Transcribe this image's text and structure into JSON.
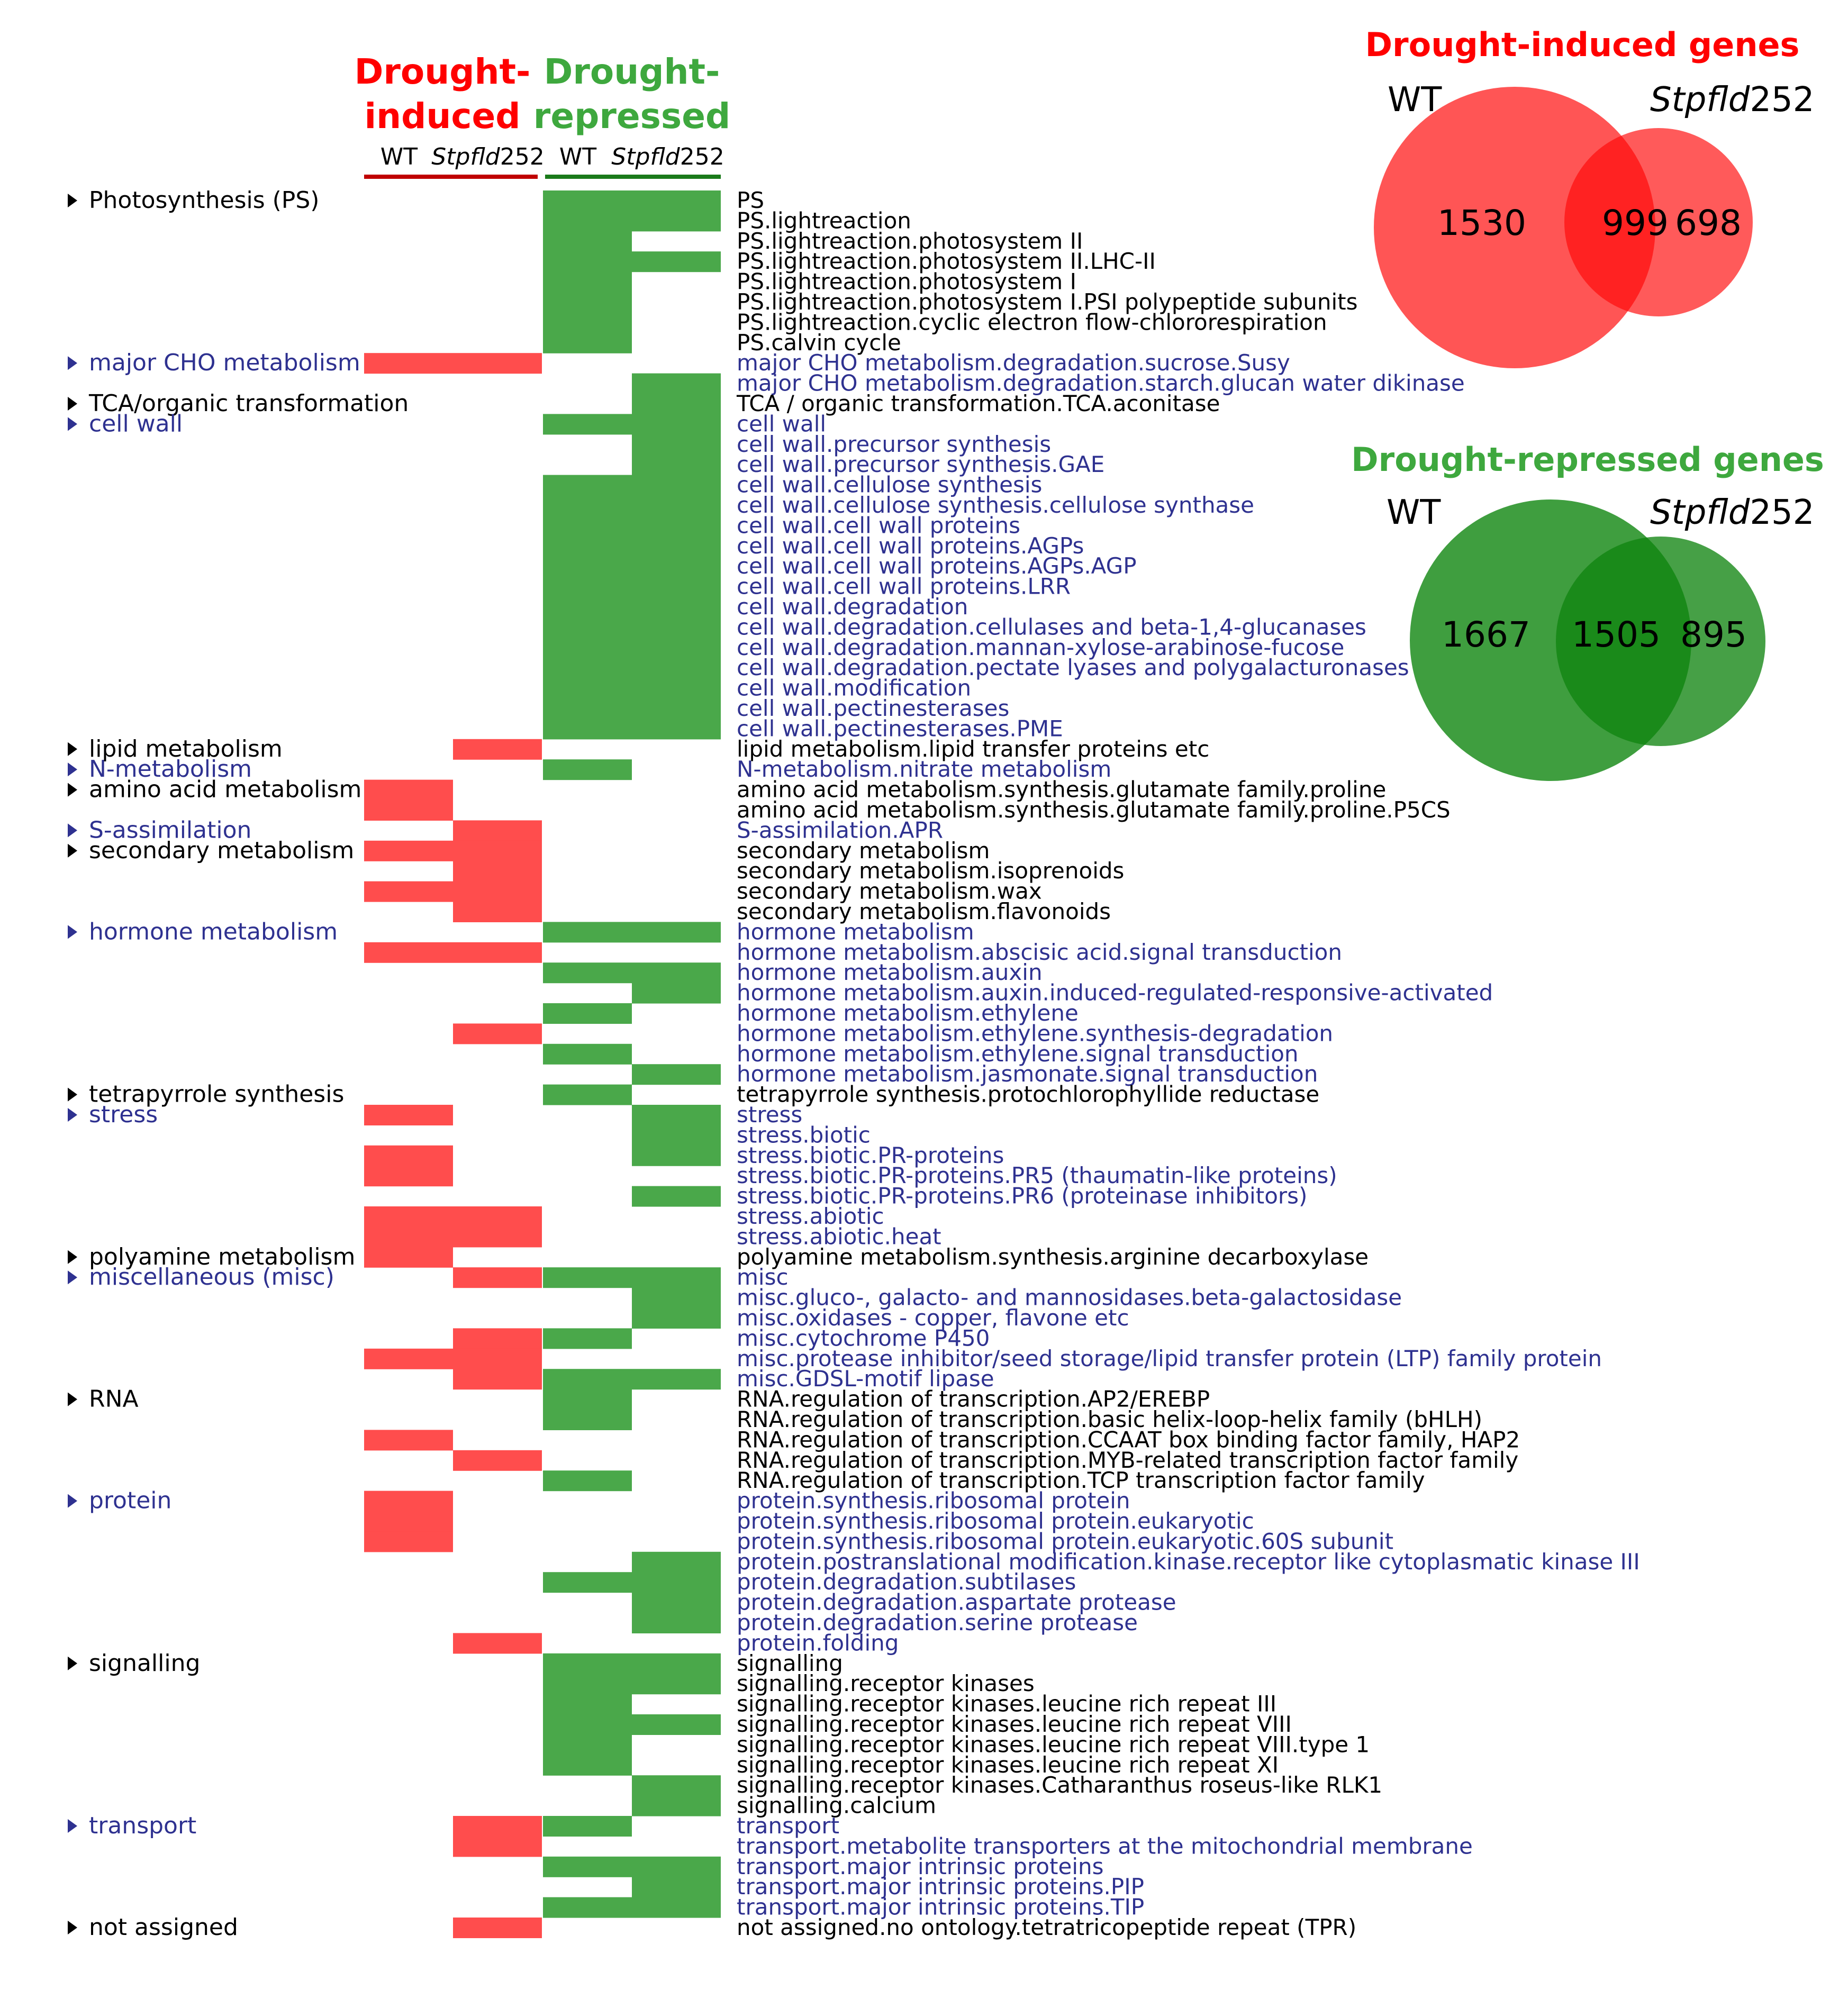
{
  "colors": {
    "induced": "#ff4d4d",
    "repressed": "#4aa84a",
    "blue_text": "#2e3190",
    "black_text": "#000000",
    "induced_title": "#ff0000",
    "repressed_title": "#3ea83e",
    "venn_induced_wt": "#ff5555",
    "venn_induced_mut": "#ff5a5a",
    "venn_induced_overlap": "#ff2222",
    "venn_repressed_wt": "#3f9e3f",
    "venn_repressed_mut": "#46a046",
    "venn_repressed_overlap": "#1a8a1a"
  },
  "chart_data": {
    "type": "heatmap",
    "group_headers": [
      {
        "text_line1": "Drought-",
        "text_line2": "induced",
        "color": "#ff0000"
      },
      {
        "text_line1": "Drought-",
        "text_line2": "repressed",
        "color": "#3ea83e"
      }
    ],
    "columns": [
      {
        "label": "WT",
        "italic": ""
      },
      {
        "label": "252",
        "italic": "Stpfld"
      },
      {
        "label": "WT",
        "italic": ""
      },
      {
        "label": "252",
        "italic": "Stpfld"
      }
    ],
    "categories": [
      {
        "label": "Photosynthesis (PS)",
        "row": 0,
        "color": "black"
      },
      {
        "label": "major CHO metabolism",
        "row": 8,
        "color": "blue"
      },
      {
        "label": "TCA/organic transformation",
        "row": 10,
        "color": "black"
      },
      {
        "label": "cell wall",
        "row": 11,
        "color": "blue"
      },
      {
        "label": "lipid metabolism",
        "row": 27,
        "color": "black"
      },
      {
        "label": "N-metabolism",
        "row": 28,
        "color": "blue"
      },
      {
        "label": "amino acid metabolism",
        "row": 29,
        "color": "black"
      },
      {
        "label": "S-assimilation",
        "row": 31,
        "color": "blue"
      },
      {
        "label": "secondary metabolism",
        "row": 32,
        "color": "black"
      },
      {
        "label": "hormone metabolism",
        "row": 36,
        "color": "blue"
      },
      {
        "label": "tetrapyrrole synthesis",
        "row": 44,
        "color": "black"
      },
      {
        "label": "stress",
        "row": 45,
        "color": "blue"
      },
      {
        "label": "polyamine metabolism",
        "row": 52,
        "color": "black"
      },
      {
        "label": "miscellaneous (misc)",
        "row": 53,
        "color": "blue"
      },
      {
        "label": "RNA",
        "row": 59,
        "color": "black"
      },
      {
        "label": "protein",
        "row": 64,
        "color": "blue"
      },
      {
        "label": "signalling",
        "row": 72,
        "color": "black"
      },
      {
        "label": "transport",
        "row": 80,
        "color": "blue"
      },
      {
        "label": "not assigned",
        "row": 85,
        "color": "black"
      }
    ],
    "rows": [
      {
        "label": "PS",
        "color": "black",
        "cells": [
          0,
          0,
          1,
          1
        ]
      },
      {
        "label": "PS.lightreaction",
        "color": "black",
        "cells": [
          0,
          0,
          1,
          1
        ]
      },
      {
        "label": "PS.lightreaction.photosystem II",
        "color": "black",
        "cells": [
          0,
          0,
          1,
          0
        ]
      },
      {
        "label": "PS.lightreaction.photosystem II.LHC-II",
        "color": "black",
        "cells": [
          0,
          0,
          1,
          1
        ]
      },
      {
        "label": "PS.lightreaction.photosystem I",
        "color": "black",
        "cells": [
          0,
          0,
          1,
          0
        ]
      },
      {
        "label": "PS.lightreaction.photosystem I.PSI polypeptide subunits",
        "color": "black",
        "cells": [
          0,
          0,
          1,
          0
        ]
      },
      {
        "label": "PS.lightreaction.cyclic electron flow-chlororespiration",
        "color": "black",
        "cells": [
          0,
          0,
          1,
          0
        ]
      },
      {
        "label": "PS.calvin cycle",
        "color": "black",
        "cells": [
          0,
          0,
          1,
          0
        ]
      },
      {
        "label": "major CHO metabolism.degradation.sucrose.Susy",
        "color": "blue",
        "cells": [
          1,
          1,
          0,
          0
        ]
      },
      {
        "label": "major CHO metabolism.degradation.starch.glucan water dikinase",
        "color": "blue",
        "cells": [
          0,
          0,
          0,
          1
        ]
      },
      {
        "label": "TCA / organic transformation.TCA.aconitase",
        "color": "black",
        "cells": [
          0,
          0,
          0,
          1
        ]
      },
      {
        "label": "cell wall",
        "color": "blue",
        "cells": [
          0,
          0,
          1,
          1
        ]
      },
      {
        "label": "cell wall.precursor synthesis",
        "color": "blue",
        "cells": [
          0,
          0,
          0,
          1
        ]
      },
      {
        "label": "cell wall.precursor synthesis.GAE",
        "color": "blue",
        "cells": [
          0,
          0,
          0,
          1
        ]
      },
      {
        "label": "cell wall.cellulose synthesis",
        "color": "blue",
        "cells": [
          0,
          0,
          1,
          1
        ]
      },
      {
        "label": "cell wall.cellulose synthesis.cellulose synthase",
        "color": "blue",
        "cells": [
          0,
          0,
          1,
          1
        ]
      },
      {
        "label": "cell wall.cell wall proteins",
        "color": "blue",
        "cells": [
          0,
          0,
          1,
          1
        ]
      },
      {
        "label": "cell wall.cell wall proteins.AGPs",
        "color": "blue",
        "cells": [
          0,
          0,
          1,
          1
        ]
      },
      {
        "label": "cell wall.cell wall proteins.AGPs.AGP",
        "color": "blue",
        "cells": [
          0,
          0,
          1,
          1
        ]
      },
      {
        "label": "cell wall.cell wall proteins.LRR",
        "color": "blue",
        "cells": [
          0,
          0,
          1,
          1
        ]
      },
      {
        "label": "cell wall.degradation",
        "color": "blue",
        "cells": [
          0,
          0,
          1,
          1
        ]
      },
      {
        "label": "cell wall.degradation.cellulases and beta-1,4-glucanases",
        "color": "blue",
        "cells": [
          0,
          0,
          1,
          1
        ]
      },
      {
        "label": "cell wall.degradation.mannan-xylose-arabinose-fucose",
        "color": "blue",
        "cells": [
          0,
          0,
          1,
          1
        ]
      },
      {
        "label": "cell wall.degradation.pectate lyases and polygalacturonases",
        "color": "blue",
        "cells": [
          0,
          0,
          1,
          1
        ]
      },
      {
        "label": "cell wall.modification",
        "color": "blue",
        "cells": [
          0,
          0,
          1,
          1
        ]
      },
      {
        "label": "cell wall.pectinesterases",
        "color": "blue",
        "cells": [
          0,
          0,
          1,
          1
        ]
      },
      {
        "label": "cell wall.pectinesterases.PME",
        "color": "blue",
        "cells": [
          0,
          0,
          1,
          1
        ]
      },
      {
        "label": "lipid metabolism.lipid transfer proteins etc",
        "color": "black",
        "cells": [
          0,
          1,
          0,
          0
        ]
      },
      {
        "label": "N-metabolism.nitrate metabolism",
        "color": "blue",
        "cells": [
          0,
          0,
          1,
          0
        ]
      },
      {
        "label": "amino acid metabolism.synthesis.glutamate family.proline",
        "color": "black",
        "cells": [
          1,
          0,
          0,
          0
        ]
      },
      {
        "label": "amino acid metabolism.synthesis.glutamate family.proline.P5CS",
        "color": "black",
        "cells": [
          1,
          0,
          0,
          0
        ]
      },
      {
        "label": "S-assimilation.APR",
        "color": "blue",
        "cells": [
          0,
          1,
          0,
          0
        ]
      },
      {
        "label": "secondary metabolism",
        "color": "black",
        "cells": [
          1,
          1,
          0,
          0
        ]
      },
      {
        "label": "secondary metabolism.isoprenoids",
        "color": "black",
        "cells": [
          0,
          1,
          0,
          0
        ]
      },
      {
        "label": "secondary metabolism.wax",
        "color": "black",
        "cells": [
          1,
          1,
          0,
          0
        ]
      },
      {
        "label": "secondary metabolism.flavonoids",
        "color": "black",
        "cells": [
          0,
          1,
          0,
          0
        ]
      },
      {
        "label": "hormone metabolism",
        "color": "blue",
        "cells": [
          0,
          0,
          1,
          1
        ]
      },
      {
        "label": "hormone metabolism.abscisic acid.signal transduction",
        "color": "blue",
        "cells": [
          1,
          1,
          0,
          0
        ]
      },
      {
        "label": "hormone metabolism.auxin",
        "color": "blue",
        "cells": [
          0,
          0,
          1,
          1
        ]
      },
      {
        "label": "hormone metabolism.auxin.induced-regulated-responsive-activated",
        "color": "blue",
        "cells": [
          0,
          0,
          0,
          1
        ]
      },
      {
        "label": "hormone metabolism.ethylene",
        "color": "blue",
        "cells": [
          0,
          0,
          1,
          0
        ]
      },
      {
        "label": "hormone metabolism.ethylene.synthesis-degradation",
        "color": "blue",
        "cells": [
          0,
          1,
          0,
          0
        ]
      },
      {
        "label": "hormone metabolism.ethylene.signal transduction",
        "color": "blue",
        "cells": [
          0,
          0,
          1,
          0
        ]
      },
      {
        "label": "hormone metabolism.jasmonate.signal transduction",
        "color": "blue",
        "cells": [
          0,
          0,
          0,
          1
        ]
      },
      {
        "label": "tetrapyrrole synthesis.protochlorophyllide reductase",
        "color": "black",
        "cells": [
          0,
          0,
          1,
          0
        ]
      },
      {
        "label": "stress",
        "color": "blue",
        "cells": [
          1,
          0,
          0,
          1
        ]
      },
      {
        "label": "stress.biotic",
        "color": "blue",
        "cells": [
          0,
          0,
          0,
          1
        ]
      },
      {
        "label": "stress.biotic.PR-proteins",
        "color": "blue",
        "cells": [
          1,
          0,
          0,
          1
        ]
      },
      {
        "label": "stress.biotic.PR-proteins.PR5 (thaumatin-like proteins)",
        "color": "blue",
        "cells": [
          1,
          0,
          0,
          0
        ]
      },
      {
        "label": "stress.biotic.PR-proteins.PR6 (proteinase inhibitors)",
        "color": "blue",
        "cells": [
          0,
          0,
          0,
          1
        ]
      },
      {
        "label": "stress.abiotic",
        "color": "blue",
        "cells": [
          1,
          1,
          0,
          0
        ]
      },
      {
        "label": "stress.abiotic.heat",
        "color": "blue",
        "cells": [
          1,
          1,
          0,
          0
        ]
      },
      {
        "label": "polyamine metabolism.synthesis.arginine decarboxylase",
        "color": "black",
        "cells": [
          1,
          0,
          0,
          0
        ]
      },
      {
        "label": "misc",
        "color": "blue",
        "cells": [
          0,
          1,
          1,
          1
        ]
      },
      {
        "label": "misc.gluco-, galacto- and mannosidases.beta-galactosidase",
        "color": "blue",
        "cells": [
          0,
          0,
          0,
          1
        ]
      },
      {
        "label": "misc.oxidases - copper, flavone etc",
        "color": "blue",
        "cells": [
          0,
          0,
          0,
          1
        ]
      },
      {
        "label": "misc.cytochrome P450",
        "color": "blue",
        "cells": [
          0,
          1,
          1,
          0
        ]
      },
      {
        "label": "misc.protease inhibitor/seed storage/lipid transfer protein (LTP) family protein",
        "color": "blue",
        "cells": [
          1,
          1,
          0,
          0
        ]
      },
      {
        "label": "misc.GDSL-motif lipase",
        "color": "blue",
        "cells": [
          0,
          1,
          1,
          1
        ]
      },
      {
        "label": "RNA.regulation of transcription.AP2/EREBP",
        "color": "black",
        "cells": [
          0,
          0,
          1,
          0
        ]
      },
      {
        "label": "RNA.regulation of transcription.basic helix-loop-helix family (bHLH)",
        "color": "black",
        "cells": [
          0,
          0,
          1,
          0
        ]
      },
      {
        "label": "RNA.regulation of transcription.CCAAT box binding factor family, HAP2",
        "color": "black",
        "cells": [
          1,
          0,
          0,
          0
        ]
      },
      {
        "label": "RNA.regulation of transcription.MYB-related transcription factor family",
        "color": "black",
        "cells": [
          0,
          1,
          0,
          0
        ]
      },
      {
        "label": "RNA.regulation of transcription.TCP transcription factor family",
        "color": "black",
        "cells": [
          0,
          0,
          1,
          0
        ]
      },
      {
        "label": "protein.synthesis.ribosomal protein",
        "color": "blue",
        "cells": [
          1,
          0,
          0,
          0
        ]
      },
      {
        "label": "protein.synthesis.ribosomal protein.eukaryotic",
        "color": "blue",
        "cells": [
          1,
          0,
          0,
          0
        ]
      },
      {
        "label": "protein.synthesis.ribosomal protein.eukaryotic.60S subunit",
        "color": "blue",
        "cells": [
          1,
          0,
          0,
          0
        ]
      },
      {
        "label": "protein.postranslational modification.kinase.receptor like cytoplasmatic kinase III",
        "color": "blue",
        "cells": [
          0,
          0,
          0,
          1
        ]
      },
      {
        "label": "protein.degradation.subtilases",
        "color": "blue",
        "cells": [
          0,
          0,
          1,
          1
        ]
      },
      {
        "label": "protein.degradation.aspartate protease",
        "color": "blue",
        "cells": [
          0,
          0,
          0,
          1
        ]
      },
      {
        "label": "protein.degradation.serine protease",
        "color": "blue",
        "cells": [
          0,
          0,
          0,
          1
        ]
      },
      {
        "label": "protein.folding",
        "color": "blue",
        "cells": [
          0,
          1,
          0,
          0
        ]
      },
      {
        "label": "signalling",
        "color": "black",
        "cells": [
          0,
          0,
          1,
          1
        ]
      },
      {
        "label": "signalling.receptor kinases",
        "color": "black",
        "cells": [
          0,
          0,
          1,
          1
        ]
      },
      {
        "label": "signalling.receptor kinases.leucine rich repeat III",
        "color": "black",
        "cells": [
          0,
          0,
          1,
          0
        ]
      },
      {
        "label": "signalling.receptor kinases.leucine rich repeat VIII",
        "color": "black",
        "cells": [
          0,
          0,
          1,
          1
        ]
      },
      {
        "label": "signalling.receptor kinases.leucine rich repeat VIII.type 1",
        "color": "black",
        "cells": [
          0,
          0,
          1,
          0
        ]
      },
      {
        "label": "signalling.receptor kinases.leucine rich repeat XI",
        "color": "black",
        "cells": [
          0,
          0,
          1,
          0
        ]
      },
      {
        "label": "signalling.receptor kinases.Catharanthus roseus-like RLK1",
        "color": "black",
        "cells": [
          0,
          0,
          0,
          1
        ]
      },
      {
        "label": "signalling.calcium",
        "color": "black",
        "cells": [
          0,
          0,
          0,
          1
        ]
      },
      {
        "label": "transport",
        "color": "blue",
        "cells": [
          0,
          1,
          1,
          0
        ]
      },
      {
        "label": "transport.metabolite transporters at the mitochondrial membrane",
        "color": "blue",
        "cells": [
          0,
          1,
          0,
          0
        ]
      },
      {
        "label": "transport.major intrinsic proteins",
        "color": "blue",
        "cells": [
          0,
          0,
          1,
          1
        ]
      },
      {
        "label": "transport.major intrinsic proteins.PIP",
        "color": "blue",
        "cells": [
          0,
          0,
          0,
          1
        ]
      },
      {
        "label": "transport.major intrinsic proteins.TIP",
        "color": "blue",
        "cells": [
          0,
          0,
          1,
          1
        ]
      },
      {
        "label": "not assigned.no ontology.tetratricopeptide repeat (TPR)",
        "color": "black",
        "cells": [
          0,
          1,
          0,
          0
        ]
      }
    ],
    "venns": [
      {
        "title": "Drought-induced genes",
        "set_a": {
          "label": "WT",
          "italic": ""
        },
        "set_b": {
          "label": "252",
          "italic": "Stpfld"
        },
        "only_a": 1530,
        "both": 999,
        "only_b": 698,
        "color": "#ff4d4d"
      },
      {
        "title": "Drought-repressed genes",
        "set_a": {
          "label": "WT",
          "italic": ""
        },
        "set_b": {
          "label": "252",
          "italic": "Stpfld"
        },
        "only_a": 1667,
        "both": 1505,
        "only_b": 895,
        "color": "#3f9e3f"
      }
    ]
  }
}
